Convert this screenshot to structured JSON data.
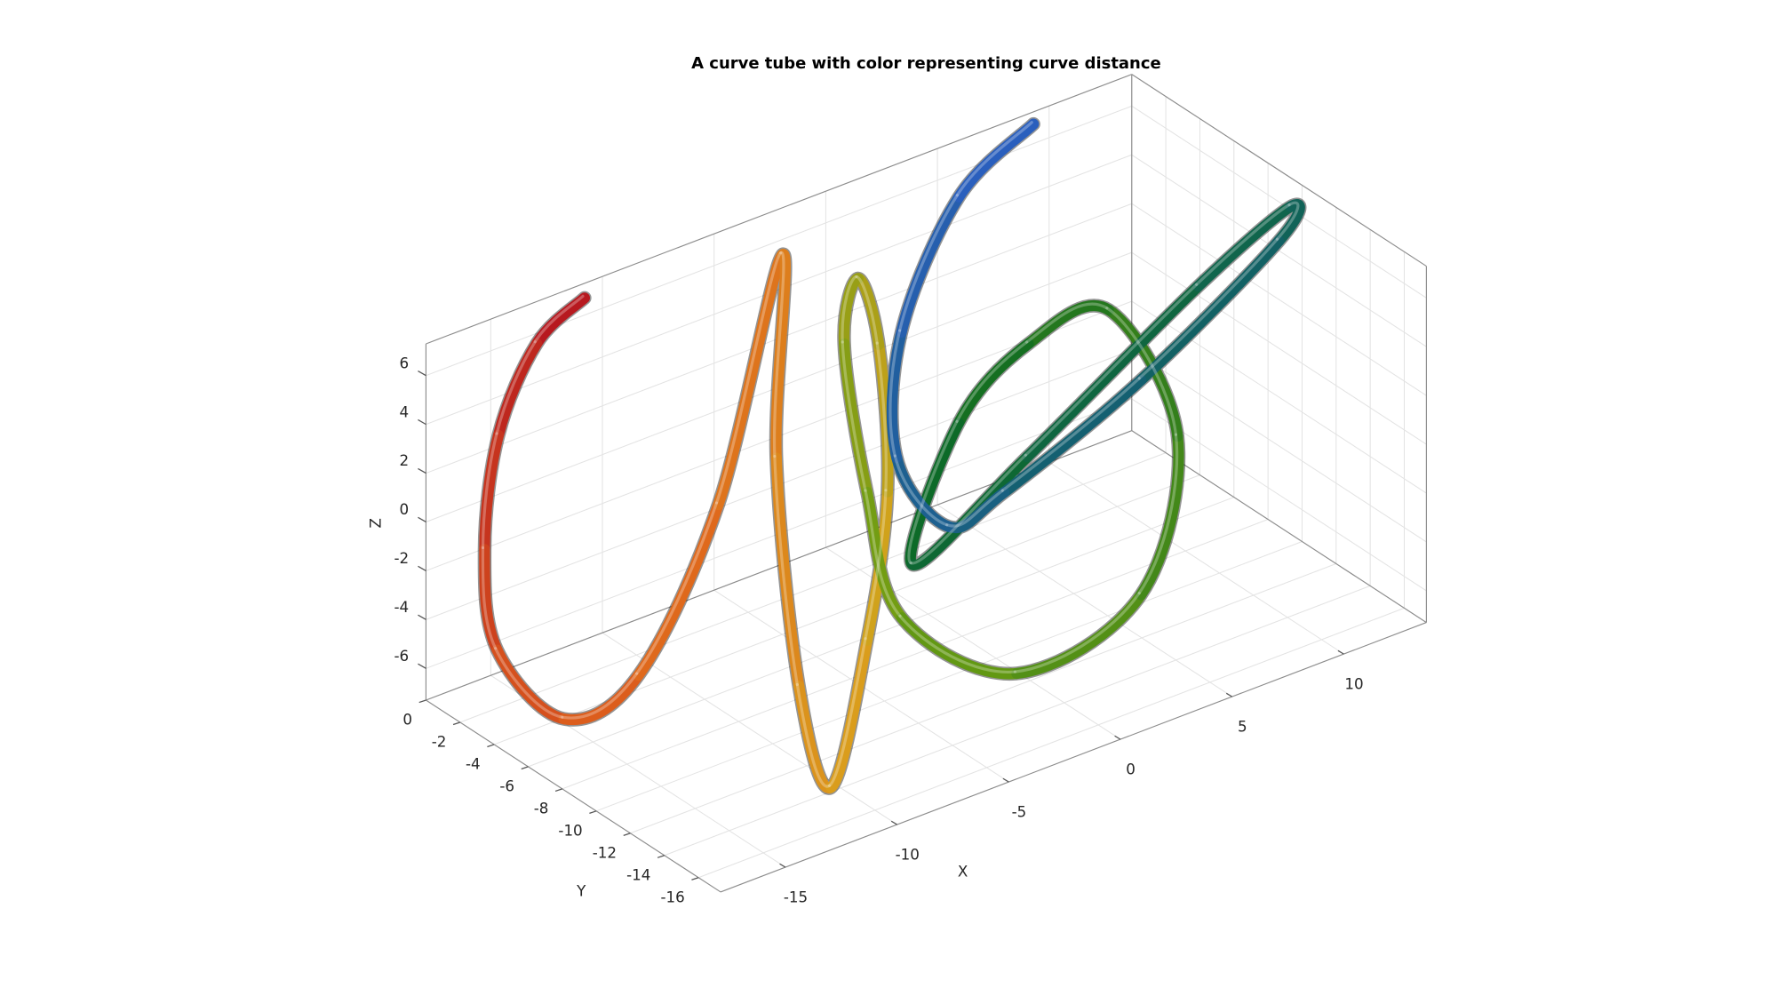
{
  "chart_data": {
    "type": "tube3d",
    "title": "A curve tube with color representing curve distance",
    "x_label": "X",
    "y_label": "Y",
    "z_label": "Z",
    "x": [
      -10.8,
      -13.7,
      -15.8,
      -16.8,
      -17.0,
      -16.3,
      -12.2,
      -7.1,
      -2.7,
      -4.5,
      -7.3,
      -11.2,
      -7.3,
      -4.1,
      -2.2,
      -1.6,
      -0.7,
      -1.2,
      -2.7,
      -0.6,
      4.2,
      6.6,
      5.8,
      4.5,
      2.9,
      1.6,
      7.5,
      12.1,
      13.2,
      11.9,
      4.2,
      -0.4,
      -0.6,
      -1.4,
      1.1,
      5.2,
      9.3
    ],
    "y": [
      0,
      -1,
      -1.5,
      -2,
      -3,
      -6,
      -5,
      -3,
      -1,
      -3,
      -8,
      -15,
      -12,
      -9,
      -6,
      -4,
      -2,
      -4,
      -8,
      -12,
      -13,
      -12,
      -9,
      -6,
      -4,
      -3,
      -2,
      -6,
      -10,
      -11,
      -13,
      -11,
      -8,
      -6,
      -3,
      -1,
      0
    ],
    "z": [
      6.7,
      6.3,
      3.5,
      -0.6,
      -4.2,
      -5.9,
      -6.0,
      -1.7,
      6.1,
      -0.7,
      -6.8,
      -6.4,
      -3.1,
      0.5,
      4.5,
      6.1,
      2.2,
      -2.8,
      -5.6,
      -6.8,
      -4.8,
      0.4,
      4.5,
      2.2,
      -1.4,
      -7.2,
      -5.3,
      1.9,
      6.6,
      6.1,
      4.0,
      0.1,
      -2.6,
      -0.4,
      2.5,
      5.7,
      6.8
    ],
    "colormap": [
      "#b3121f",
      "#e0641c",
      "#d9a21c",
      "#6a9c12",
      "#0d6b22",
      "#12606a",
      "#2c5fc4"
    ],
    "xlim": [
      -17.9,
      13.7
    ],
    "ylim": [
      -17.3,
      0
    ],
    "zlim": [
      -7.3,
      7.3
    ],
    "xticks": [
      -15,
      -10,
      -5,
      0,
      5,
      10
    ],
    "yticks": [
      -16,
      -14,
      -12,
      -10,
      -8,
      -6,
      -4,
      -2,
      0
    ],
    "zticks": [
      -6,
      -4,
      -2,
      0,
      2,
      4,
      6
    ],
    "grid": true
  }
}
